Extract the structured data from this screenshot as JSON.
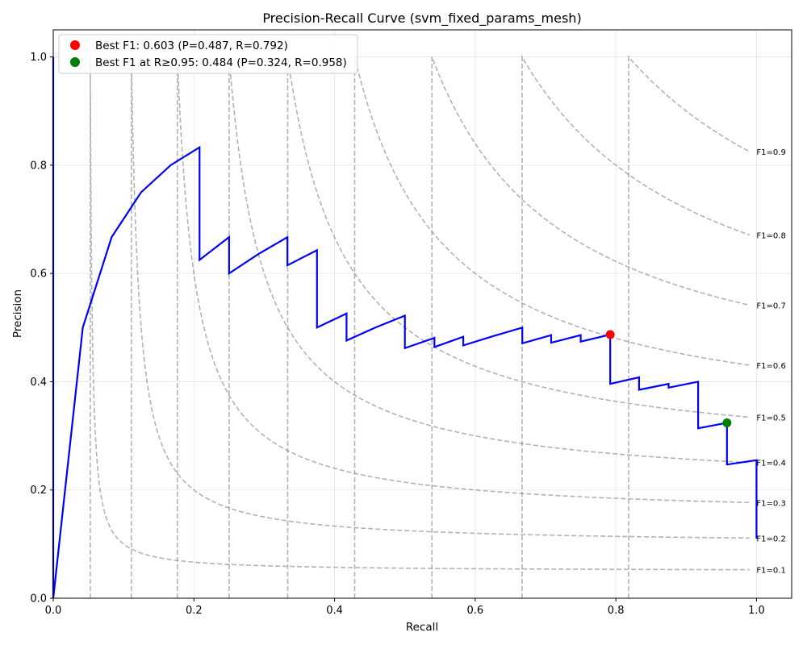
{
  "chart_data": {
    "type": "line",
    "title": "Precision-Recall Curve (svm_fixed_params_mesh)",
    "xlabel": "Recall",
    "ylabel": "Precision",
    "xlim": [
      0.0,
      1.05
    ],
    "ylim": [
      0.0,
      1.05
    ],
    "grid": true,
    "legend_position": "top-left",
    "x_ticks": [
      "0.0",
      "0.2",
      "0.4",
      "0.6",
      "0.8",
      "1.0"
    ],
    "y_ticks": [
      "0.0",
      "0.2",
      "0.4",
      "0.6",
      "0.8",
      "1.0"
    ],
    "colors": {
      "curve": "#0000ff",
      "iso": "#808080",
      "best": "#ff0000",
      "best_high_recall": "#008000"
    },
    "series": [
      {
        "recall": [
          0.0,
          0.0,
          0.042,
          0.083,
          0.125,
          0.167,
          0.208,
          0.208,
          0.25,
          0.25,
          0.292,
          0.333,
          0.333,
          0.375,
          0.375,
          0.417,
          0.417,
          0.458,
          0.5,
          0.5,
          0.542,
          0.542,
          0.583,
          0.583,
          0.625,
          0.667,
          0.667,
          0.708,
          0.708,
          0.75,
          0.75,
          0.792,
          0.792,
          0.833,
          0.833,
          0.875,
          0.875,
          0.917,
          0.917,
          0.958,
          0.958,
          1.0,
          1.0
        ],
        "precision": [
          1.0,
          0.0,
          0.5,
          0.667,
          0.75,
          0.8,
          0.833,
          0.625,
          0.667,
          0.6,
          0.636,
          0.667,
          0.615,
          0.643,
          0.5,
          0.526,
          0.476,
          0.5,
          0.522,
          0.462,
          0.481,
          0.464,
          0.483,
          0.467,
          0.484,
          0.5,
          0.471,
          0.486,
          0.472,
          0.486,
          0.474,
          0.487,
          0.396,
          0.408,
          0.385,
          0.396,
          0.389,
          0.4,
          0.314,
          0.324,
          0.247,
          0.255,
          0.11
        ]
      }
    ],
    "iso_f1": [
      {
        "f1": 0.1,
        "label": "F1=0.1"
      },
      {
        "f1": 0.2,
        "label": "F1=0.2"
      },
      {
        "f1": 0.3,
        "label": "F1=0.3"
      },
      {
        "f1": 0.4,
        "label": "F1=0.4"
      },
      {
        "f1": 0.5,
        "label": "F1=0.5"
      },
      {
        "f1": 0.6,
        "label": "F1=0.6"
      },
      {
        "f1": 0.7,
        "label": "F1=0.7"
      },
      {
        "f1": 0.8,
        "label": "F1=0.8"
      },
      {
        "f1": 0.9,
        "label": "F1=0.9"
      }
    ],
    "points": [
      {
        "name": "Best F1: 0.603 (P=0.487, R=0.792)",
        "recall": 0.792,
        "precision": 0.487
      },
      {
        "name": "Best F1 at R≥0.95: 0.484 (P=0.324, R=0.958)",
        "recall": 0.958,
        "precision": 0.324
      }
    ]
  }
}
